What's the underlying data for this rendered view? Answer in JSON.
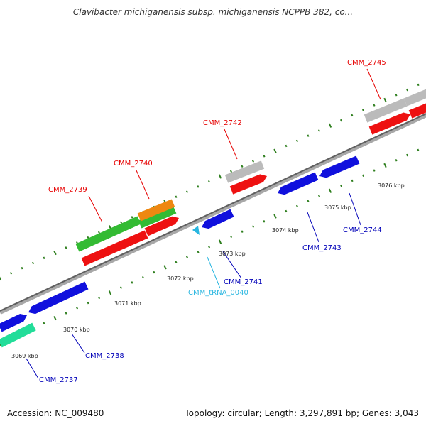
{
  "header": {
    "title": "Clavibacter michiganensis subsp. michiganensis NCPPB 382, co..."
  },
  "footer": {
    "accession": "Accession: NC_009480",
    "summary": "Topology: circular; Length: 3,297,891 bp; Genes: 3,043"
  },
  "colors": {
    "upper_label": "#e60000",
    "lower_label": "#0000b8",
    "trna_label": "#29b6e0",
    "tick": "#2f7f1f",
    "backbone": "#808080",
    "blue_gene": "#1010dd",
    "red_gene": "#ee1111",
    "green_gene": "#33bb33",
    "gray_gene": "#bbbbbb",
    "orange_gene": "#ee8811",
    "teal_gene": "#22dd99",
    "trna": "#29b6e0"
  },
  "scale_labels": [
    "3069 kbp",
    "3070 kbp",
    "3071 kbp",
    "3072 kbp",
    "3073 kbp",
    "3074 kbp",
    "3075 kbp",
    "3076 kbp"
  ],
  "genes": [
    {
      "name": "CMM_2737",
      "strand": "lower",
      "feature_color": "teal"
    },
    {
      "name": "CMM_2738",
      "strand": "lower",
      "feature_color": "blue"
    },
    {
      "name": "CMM_2739",
      "strand": "upper",
      "feature_color": "green"
    },
    {
      "name": "CMM_2740",
      "strand": "upper",
      "feature_color": "orange"
    },
    {
      "name": "CMM_2741",
      "strand": "lower",
      "feature_color": "blue"
    },
    {
      "name": "CMM_tRNA_0040",
      "strand": "lower",
      "feature_color": "trna"
    },
    {
      "name": "CMM_2742",
      "strand": "upper",
      "feature_color": "gray"
    },
    {
      "name": "CMM_2743",
      "strand": "lower",
      "feature_color": "blue"
    },
    {
      "name": "CMM_2744",
      "strand": "lower",
      "feature_color": "blue"
    },
    {
      "name": "CMM_2745",
      "strand": "upper",
      "feature_color": "gray"
    }
  ]
}
